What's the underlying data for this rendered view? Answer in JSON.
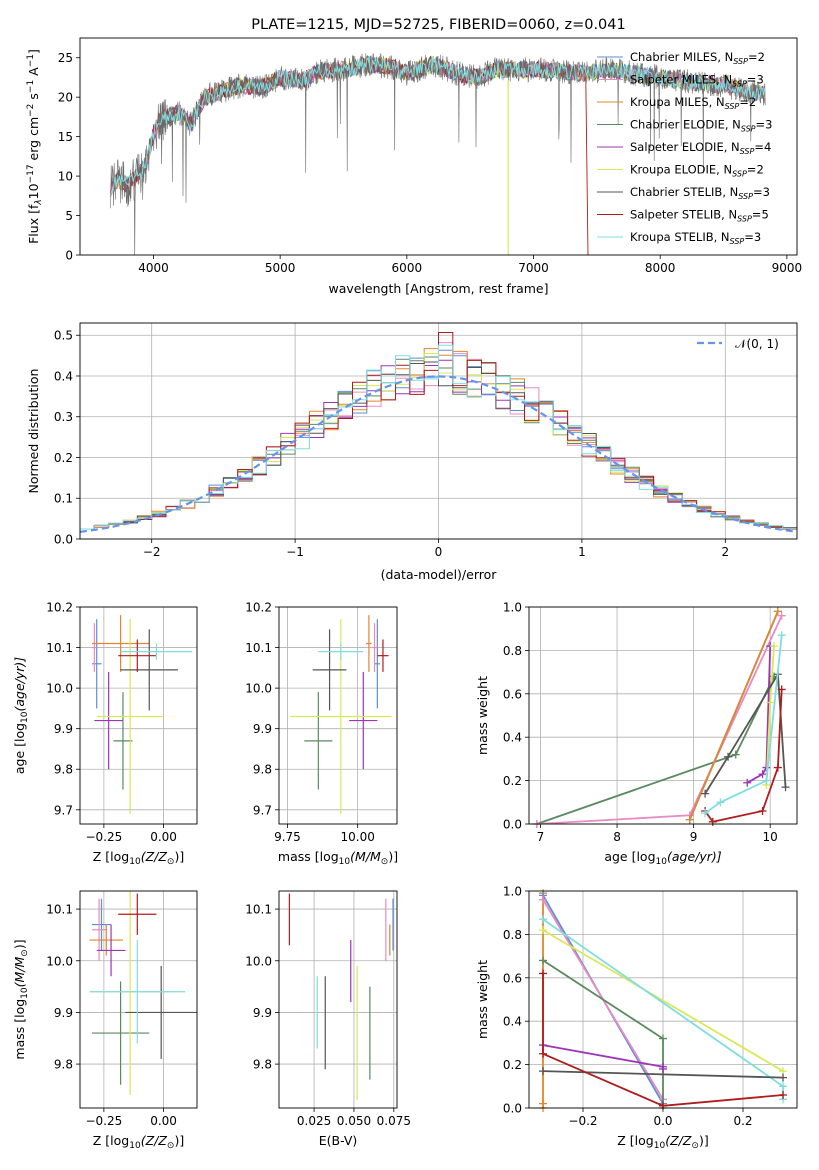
{
  "colors": {
    "chabrier_miles": "#5b8fd6",
    "salpeter_miles": "#e98ac3",
    "kroupa_miles": "#e3852b",
    "chabrier_elodie": "#5a8a5f",
    "salpeter_elodie": "#9b35b6",
    "kroupa_elodie": "#d8e857",
    "chabrier_stelib": "#555555",
    "salpeter_stelib": "#b01b1b",
    "kroupa_stelib": "#7fdde0",
    "normal": "#6495ed"
  },
  "chart_data": [
    {
      "id": "spectrum",
      "type": "line",
      "title": "PLATE=1215, MJD=52725, FIBERID=0060, z=0.041",
      "xlabel": "wavelength [Angstrom, rest frame]",
      "ylabel": "Flux [f",
      "ylabel_sub": "λ",
      "ylabel_mid": "10",
      "ylabel_sup1": "−17",
      "ylabel_mid2": " erg cm",
      "ylabel_sup2": "−2",
      "ylabel_mid3": " s",
      "ylabel_sup3": "−1",
      "ylabel_mid4": " A",
      "ylabel_sup4": "−1",
      "ylabel_end": "]",
      "xlim": [
        3420,
        9080
      ],
      "ylim": [
        0,
        27.5
      ],
      "xticks": [
        4000,
        5000,
        6000,
        7000,
        8000,
        9000
      ],
      "xtick_labels": [
        "4000",
        "5000",
        "6000",
        "7000",
        "8000",
        "9000"
      ],
      "yticks": [
        0,
        5,
        10,
        15,
        20,
        25
      ],
      "ytick_labels": [
        "0",
        "5",
        "10",
        "15",
        "20",
        "25"
      ],
      "continuum_x": [
        3660,
        3720,
        3800,
        3900,
        3950,
        4000,
        4050,
        4100,
        4200,
        4300,
        4350,
        4400,
        4500,
        4700,
        4860,
        5000,
        5175,
        5300,
        5500,
        5700,
        5890,
        6000,
        6200,
        6400,
        6563,
        6700,
        7000,
        7200,
        7400,
        7600,
        7800,
        8000,
        8200,
        8500,
        8830
      ],
      "continuum_y": [
        8.5,
        9.5,
        8.8,
        10.5,
        12.0,
        15.5,
        17.0,
        17.5,
        18.0,
        16.5,
        18.3,
        20.0,
        20.5,
        21.5,
        21.2,
        22.5,
        22.0,
        23.3,
        23.5,
        24.2,
        23.8,
        23.0,
        24.2,
        23.0,
        22.5,
        23.5,
        23.5,
        23.3,
        23.0,
        23.5,
        23.0,
        22.5,
        22.0,
        21.5,
        20.3
      ],
      "sky_drop_x": 6800,
      "series": [
        {
          "name": "Chabrier MILES",
          "nssp": "2",
          "color_key": "chabrier_miles"
        },
        {
          "name": "Salpeter MILES",
          "nssp": "3",
          "color_key": "salpeter_miles"
        },
        {
          "name": "Kroupa MILES",
          "nssp": "2",
          "color_key": "kroupa_miles"
        },
        {
          "name": "Chabrier ELODIE",
          "nssp": "3",
          "color_key": "chabrier_elodie"
        },
        {
          "name": "Salpeter ELODIE",
          "nssp": "4",
          "color_key": "salpeter_elodie"
        },
        {
          "name": "Kroupa ELODIE",
          "nssp": "2",
          "color_key": "kroupa_elodie"
        },
        {
          "name": "Chabrier STELIB",
          "nssp": "3",
          "color_key": "chabrier_stelib"
        },
        {
          "name": "Salpeter STELIB",
          "nssp": "5",
          "color_key": "salpeter_stelib"
        },
        {
          "name": "Kroupa STELIB",
          "nssp": "3",
          "color_key": "kroupa_stelib"
        }
      ],
      "legend_label_sub": "SSP",
      "legend": "upper right"
    },
    {
      "id": "residuals",
      "type": "step",
      "xlabel": "(data-model)/error",
      "ylabel": "Normed distribution",
      "xlim": [
        -2.5,
        2.5
      ],
      "ylim": [
        0,
        0.53
      ],
      "xticks": [
        -2,
        -1,
        0,
        1,
        2
      ],
      "xtick_labels": [
        "−2",
        "−1",
        "0",
        "1",
        "2"
      ],
      "yticks": [
        0.0,
        0.1,
        0.2,
        0.3,
        0.4,
        0.5
      ],
      "ytick_labels": [
        "0.0",
        "0.1",
        "0.2",
        "0.3",
        "0.4",
        "0.5"
      ],
      "grid": true,
      "bin_width": 0.1,
      "bin_start": -2.5,
      "normal_label": "𝒩(0, 1)",
      "legend": "upper right"
    },
    {
      "id": "age_vs_Z",
      "type": "errorbar",
      "xlabel": "Z [log",
      "xlabel_sub": "10",
      "xlabel_rest": "(Z/Z",
      "xlabel_sub2": "⊙",
      "xlabel_end": ")]",
      "ylabel": "age  [log",
      "ylabel_sub": "10",
      "ylabel_rest": "(age/yr)]",
      "xlim": [
        -0.35,
        0.14
      ],
      "ylim": [
        9.665,
        10.2
      ],
      "xticks": [
        -0.25,
        0.0
      ],
      "xtick_labels": [
        "−0.25",
        "0.00"
      ],
      "yticks": [
        9.7,
        9.8,
        9.9,
        10.0,
        10.1,
        10.2
      ],
      "ytick_labels": [
        "9.7",
        "9.8",
        "9.9",
        "10.0",
        "10.1",
        "10.2"
      ],
      "grid": true,
      "points": [
        {
          "color_key": "chabrier_miles",
          "x": -0.28,
          "xerr": 0.02,
          "y": 10.06,
          "yerr": 0.11
        },
        {
          "color_key": "salpeter_miles",
          "x": -0.29,
          "xerr": 0.01,
          "y": 10.1,
          "yerr": 0.06
        },
        {
          "color_key": "kroupa_miles",
          "x": -0.18,
          "xerr": 0.12,
          "y": 10.11,
          "yerr": 0.07
        },
        {
          "color_key": "chabrier_elodie",
          "x": -0.17,
          "xerr": 0.04,
          "y": 9.87,
          "yerr": 0.12
        },
        {
          "color_key": "salpeter_elodie",
          "x": -0.23,
          "xerr": 0.06,
          "y": 9.92,
          "yerr": 0.12
        },
        {
          "color_key": "kroupa_elodie",
          "x": -0.14,
          "xerr": 0.14,
          "y": 9.93,
          "yerr": 0.24
        },
        {
          "color_key": "chabrier_stelib",
          "x": -0.06,
          "xerr": 0.12,
          "y": 10.045,
          "yerr": 0.1
        },
        {
          "color_key": "salpeter_stelib",
          "x": -0.11,
          "xerr": 0.08,
          "y": 10.08,
          "yerr": 0.04
        },
        {
          "color_key": "kroupa_stelib",
          "x": -0.03,
          "xerr": 0.15,
          "y": 10.09,
          "yerr": 0.02
        }
      ]
    },
    {
      "id": "age_vs_mass",
      "type": "errorbar",
      "xlabel": "mass [log",
      "xlabel_sub": "10",
      "xlabel_rest": "(M/M",
      "xlabel_sub2": "⊙",
      "xlabel_end": ")]",
      "xlim": [
        9.72,
        10.14
      ],
      "ylim": [
        9.665,
        10.2
      ],
      "xticks": [
        9.75,
        10.0
      ],
      "xtick_labels": [
        "9.75",
        "10.00"
      ],
      "yticks": [
        9.7,
        9.8,
        9.9,
        10.0,
        10.1,
        10.2
      ],
      "ytick_labels": [
        "9.7",
        "9.8",
        "9.9",
        "10.0",
        "10.1",
        "10.2"
      ],
      "grid": true,
      "points": [
        {
          "color_key": "chabrier_miles",
          "x": 10.07,
          "xerr": 0.01,
          "y": 10.06,
          "yerr": 0.11
        },
        {
          "color_key": "salpeter_miles",
          "x": 10.06,
          "xerr": 0.01,
          "y": 10.1,
          "yerr": 0.06
        },
        {
          "color_key": "kroupa_miles",
          "x": 10.04,
          "xerr": 0.01,
          "y": 10.11,
          "yerr": 0.07
        },
        {
          "color_key": "chabrier_elodie",
          "x": 9.86,
          "xerr": 0.05,
          "y": 9.87,
          "yerr": 0.12
        },
        {
          "color_key": "salpeter_elodie",
          "x": 10.02,
          "xerr": 0.05,
          "y": 9.92,
          "yerr": 0.12
        },
        {
          "color_key": "kroupa_elodie",
          "x": 9.94,
          "xerr": 0.18,
          "y": 9.93,
          "yerr": 0.24
        },
        {
          "color_key": "chabrier_stelib",
          "x": 9.9,
          "xerr": 0.06,
          "y": 10.045,
          "yerr": 0.1
        },
        {
          "color_key": "salpeter_stelib",
          "x": 10.09,
          "xerr": 0.02,
          "y": 10.08,
          "yerr": 0.04
        },
        {
          "color_key": "kroupa_stelib",
          "x": 9.94,
          "xerr": 0.08,
          "y": 10.09,
          "yerr": 0.02
        }
      ]
    },
    {
      "id": "mass_weight_vs_age",
      "type": "line",
      "xlabel": "age  [log",
      "xlabel_sub": "10",
      "xlabel_rest": "(age/yr)]",
      "ylabel": "mass weight",
      "xlim": [
        6.85,
        10.35
      ],
      "ylim": [
        0,
        1.0
      ],
      "xticks": [
        7,
        8,
        9,
        10
      ],
      "xtick_labels": [
        "7",
        "8",
        "9",
        "10"
      ],
      "yticks": [
        0.0,
        0.2,
        0.4,
        0.6,
        0.8,
        1.0
      ],
      "ytick_labels": [
        "0.0",
        "0.2",
        "0.4",
        "0.6",
        "0.8",
        "1.0"
      ],
      "grid": true,
      "series": [
        {
          "color_key": "chabrier_elodie",
          "x": [
            6.95,
            9.55,
            10.05
          ],
          "y": [
            0.0,
            0.32,
            0.68
          ]
        },
        {
          "color_key": "salpeter_miles",
          "x": [
            6.95,
            8.95,
            10.15
          ],
          "y": [
            0.0,
            0.04,
            0.96
          ]
        },
        {
          "color_key": "chabrier_miles",
          "x": [
            8.95,
            10.1
          ],
          "y": [
            0.02,
            0.98
          ]
        },
        {
          "color_key": "kroupa_miles",
          "x": [
            8.95,
            10.1
          ],
          "y": [
            0.02,
            0.98
          ]
        },
        {
          "color_key": "salpeter_elodie",
          "x": [
            9.7,
            9.9,
            9.95,
            10.0
          ],
          "y": [
            0.19,
            0.23,
            0.26,
            0.82
          ]
        },
        {
          "color_key": "kroupa_elodie",
          "x": [
            9.95,
            10.0,
            10.05
          ],
          "y": [
            0.18,
            0.56,
            0.82
          ]
        },
        {
          "color_key": "chabrier_stelib",
          "x": [
            9.15,
            9.45,
            10.1,
            10.2
          ],
          "y": [
            0.14,
            0.31,
            0.69,
            0.17
          ]
        },
        {
          "color_key": "salpeter_stelib",
          "x": [
            9.15,
            9.25,
            9.9,
            10.1,
            10.15
          ],
          "y": [
            0.06,
            0.01,
            0.06,
            0.26,
            0.62
          ]
        },
        {
          "color_key": "kroupa_stelib",
          "x": [
            9.15,
            9.35,
            9.95,
            10.15
          ],
          "y": [
            0.05,
            0.1,
            0.2,
            0.87
          ]
        }
      ]
    },
    {
      "id": "mass_vs_Z",
      "type": "errorbar",
      "xlabel": "Z [log",
      "xlabel_sub": "10",
      "xlabel_rest": "(Z/Z",
      "xlabel_sub2": "⊙",
      "xlabel_end": ")]",
      "ylabel": "mass [log",
      "ylabel_sub": "10",
      "ylabel_rest": "(M/M",
      "ylabel_sub2": "⊙",
      "ylabel_end": ")]",
      "xlim": [
        -0.35,
        0.14
      ],
      "ylim": [
        9.715,
        10.135
      ],
      "xticks": [
        -0.25,
        0.0
      ],
      "xtick_labels": [
        "−0.25",
        "0.00"
      ],
      "yticks": [
        9.8,
        9.9,
        10.0,
        10.1
      ],
      "ytick_labels": [
        "9.8",
        "9.9",
        "10.0",
        "10.1"
      ],
      "grid": true,
      "points": [
        {
          "color_key": "chabrier_miles",
          "x": -0.26,
          "xerr": 0.04,
          "y": 10.07,
          "yerr": 0.05
        },
        {
          "color_key": "salpeter_miles",
          "x": -0.27,
          "xerr": 0.03,
          "y": 10.06,
          "yerr": 0.06
        },
        {
          "color_key": "kroupa_miles",
          "x": -0.24,
          "xerr": 0.07,
          "y": 10.04,
          "yerr": 0.03
        },
        {
          "color_key": "chabrier_elodie",
          "x": -0.18,
          "xerr": 0.12,
          "y": 9.86,
          "yerr": 0.1
        },
        {
          "color_key": "salpeter_elodie",
          "x": -0.22,
          "xerr": 0.06,
          "y": 10.02,
          "yerr": 0.05
        },
        {
          "color_key": "kroupa_elodie",
          "x": -0.14,
          "xerr": 0.16,
          "y": 9.94,
          "yerr": 0.2
        },
        {
          "color_key": "chabrier_stelib",
          "x": -0.01,
          "xerr": 0.15,
          "y": 9.9,
          "yerr": 0.09
        },
        {
          "color_key": "salpeter_stelib",
          "x": -0.11,
          "xerr": 0.08,
          "y": 10.09,
          "yerr": 0.04
        },
        {
          "color_key": "kroupa_stelib",
          "x": -0.11,
          "xerr": 0.2,
          "y": 9.94,
          "yerr": 0.1
        }
      ]
    },
    {
      "id": "mass_vs_ebv",
      "type": "errorbar",
      "xlabel": "E(B-V)",
      "xlim": [
        0.003,
        0.077
      ],
      "ylim": [
        9.715,
        10.135
      ],
      "xticks": [
        0.025,
        0.05,
        0.075
      ],
      "xtick_labels": [
        "0.025",
        "0.050",
        "0.075"
      ],
      "yticks": [
        9.8,
        9.9,
        10.0,
        10.1
      ],
      "ytick_labels": [
        "9.8",
        "9.9",
        "10.0",
        "10.1"
      ],
      "grid": true,
      "points": [
        {
          "color_key": "chabrier_miles",
          "x": 0.0745,
          "y": 10.07,
          "yerr": 0.05
        },
        {
          "color_key": "salpeter_miles",
          "x": 0.07,
          "y": 10.06,
          "yerr": 0.06
        },
        {
          "color_key": "kroupa_miles",
          "x": 0.0725,
          "y": 10.04,
          "yerr": 0.03
        },
        {
          "color_key": "chabrier_elodie",
          "x": 0.06,
          "y": 9.86,
          "yerr": 0.09
        },
        {
          "color_key": "salpeter_elodie",
          "x": 0.048,
          "y": 9.98,
          "yerr": 0.06
        },
        {
          "color_key": "kroupa_elodie",
          "x": 0.052,
          "y": 9.86,
          "yerr": 0.13
        },
        {
          "color_key": "chabrier_stelib",
          "x": 0.032,
          "y": 9.88,
          "yerr": 0.09
        },
        {
          "color_key": "salpeter_stelib",
          "x": 0.0095,
          "y": 10.08,
          "yerr": 0.05
        },
        {
          "color_key": "kroupa_stelib",
          "x": 0.027,
          "y": 9.9,
          "yerr": 0.07
        }
      ]
    },
    {
      "id": "mass_weight_vs_Z",
      "type": "line",
      "xlabel": "Z [log",
      "xlabel_sub": "10",
      "xlabel_rest": "(Z/Z",
      "xlabel_sub2": "⊙",
      "xlabel_end": ")]",
      "ylabel": "mass weight",
      "xlim": [
        -0.335,
        0.335
      ],
      "ylim": [
        0,
        1.0
      ],
      "xticks": [
        -0.2,
        0.0,
        0.2
      ],
      "xtick_labels": [
        "−0.2",
        "0.0",
        "0.2"
      ],
      "yticks": [
        0.0,
        0.2,
        0.4,
        0.6,
        0.8,
        1.0
      ],
      "ytick_labels": [
        "0.0",
        "0.2",
        "0.4",
        "0.6",
        "0.8",
        "1.0"
      ],
      "grid": true,
      "series": [
        {
          "color_key": "kroupa_miles",
          "x": [
            -0.3,
            -0.3,
            -0.3
          ],
          "y": [
            0.0,
            0.02,
            0.99
          ]
        },
        {
          "color_key": "chabrier_miles",
          "x": [
            -0.3,
            0.0
          ],
          "y": [
            0.98,
            0.02
          ]
        },
        {
          "color_key": "salpeter_miles",
          "x": [
            -0.3,
            0.0
          ],
          "y": [
            0.96,
            0.04
          ]
        },
        {
          "color_key": "chabrier_elodie",
          "x": [
            -0.3,
            0.0,
            0.0
          ],
          "y": [
            0.68,
            0.32,
            0.0
          ]
        },
        {
          "color_key": "salpeter_elodie",
          "x": [
            -0.3,
            0.0,
            0.0
          ],
          "y": [
            0.29,
            0.19,
            0.18
          ]
        },
        {
          "color_key": "kroupa_elodie",
          "x": [
            -0.3,
            0.3
          ],
          "y": [
            0.82,
            0.17
          ]
        },
        {
          "color_key": "kroupa_stelib",
          "x": [
            -0.3,
            0.3,
            0.3
          ],
          "y": [
            0.87,
            0.1,
            0.04
          ]
        },
        {
          "color_key": "chabrier_stelib",
          "x": [
            -0.3,
            0.3
          ],
          "y": [
            0.17,
            0.14
          ]
        },
        {
          "color_key": "salpeter_stelib",
          "x": [
            -0.3,
            -0.3,
            0.0,
            0.3
          ],
          "y": [
            0.62,
            0.25,
            0.01,
            0.06
          ]
        }
      ]
    }
  ]
}
